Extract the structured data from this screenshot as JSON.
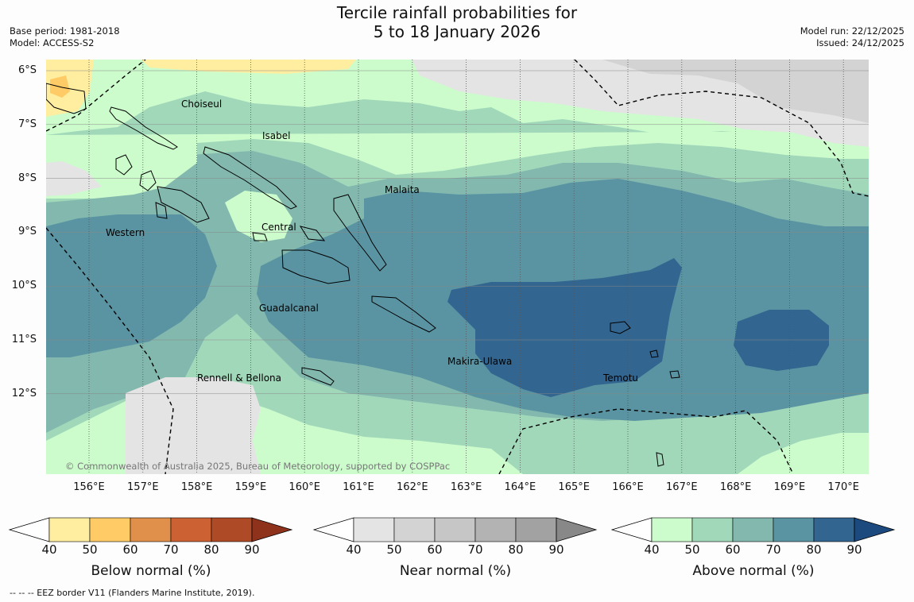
{
  "header": {
    "title_line1": "Tercile rainfall probabilities for",
    "title_line2": "5 to 18 January 2026",
    "base_period": "Base period: 1981-2018",
    "model": "Model: ACCESS-S2",
    "model_run": "Model run: 22/12/2025",
    "issued": "Issued: 24/12/2025"
  },
  "map": {
    "lon_labels": [
      "156°E",
      "157°E",
      "158°E",
      "159°E",
      "160°E",
      "161°E",
      "162°E",
      "163°E",
      "164°E",
      "165°E",
      "166°E",
      "167°E",
      "168°E",
      "169°E",
      "170°E"
    ],
    "lat_labels": [
      "6°S",
      "7°S",
      "8°S",
      "9°S",
      "10°S",
      "11°S",
      "12°S"
    ],
    "places": {
      "choiseul": "Choiseul",
      "isabel": "Isabel",
      "malaita": "Malaita",
      "western": "Western",
      "central": "Central",
      "guadalcanal": "Guadalcanal",
      "makira": "Makira-Ulawa",
      "temotu": "Temotu",
      "rennell": "Rennell & Bellona"
    },
    "copyright": "© Commonwealth of Australia 2025, Bureau of Meteorology, supported by COSPPac"
  },
  "colorbars": {
    "below": {
      "title": "Below normal (%)",
      "ticks": [
        "40",
        "50",
        "60",
        "70",
        "80",
        "90"
      ],
      "colors": [
        "#ffeea0",
        "#fecb66",
        "#e0904a",
        "#cc6234",
        "#ae4a26",
        "#8e321c"
      ]
    },
    "near": {
      "title": "Near normal (%)",
      "ticks": [
        "40",
        "50",
        "60",
        "70",
        "80",
        "90"
      ],
      "colors": [
        "#e4e4e4",
        "#d3d3d3",
        "#c6c6c6",
        "#b3b3b3",
        "#a2a2a2",
        "#888888"
      ]
    },
    "above": {
      "title": "Above normal (%)",
      "ticks": [
        "40",
        "50",
        "60",
        "70",
        "80",
        "90"
      ],
      "colors": [
        "#ccfccc",
        "#a2d8ba",
        "#82b8ae",
        "#5a94a2",
        "#32658f",
        "#1c4a7e"
      ]
    }
  },
  "footer": {
    "eez_legend": "--  --  -- EEZ border V11 (Flanders Marine Institute, 2019)."
  }
}
